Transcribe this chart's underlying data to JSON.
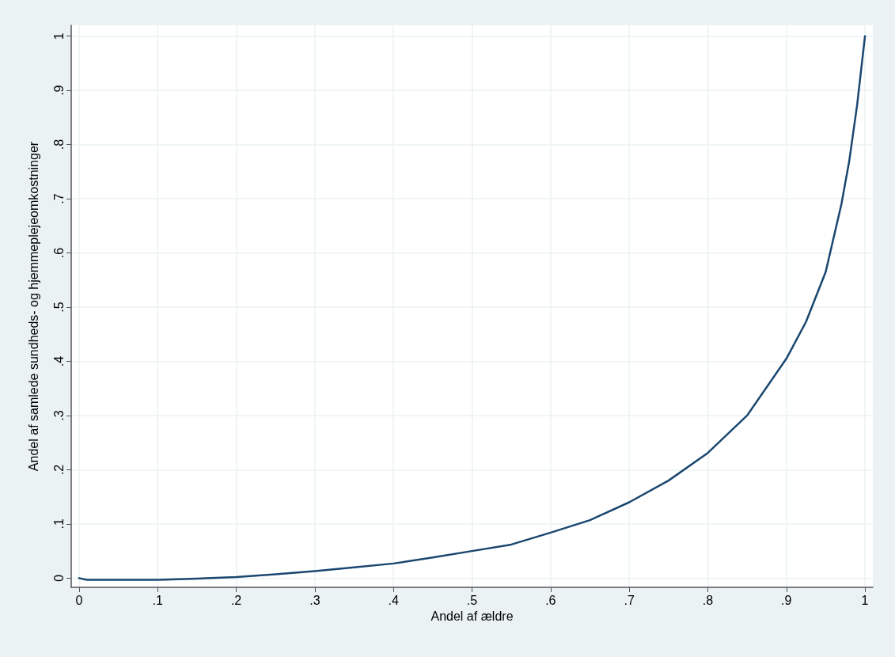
{
  "chart_data": {
    "type": "line",
    "xlabel": "Andel af ældre",
    "ylabel": "Andel af samlede sundheds- og hjemmeplejeomkostninger",
    "series": [
      {
        "color": "#1a476f",
        "x": [
          0,
          0.01,
          0.05,
          0.1,
          0.15,
          0.2,
          0.25,
          0.3,
          0.35,
          0.4,
          0.45,
          0.5,
          0.55,
          0.6,
          0.65,
          0.7,
          0.75,
          0.8,
          0.85,
          0.9,
          0.925,
          0.95,
          0.97,
          0.98,
          0.99,
          1
        ],
        "values": [
          0,
          -0.003,
          -0.003,
          -0.003,
          -0.001,
          0.002,
          0.007,
          0.013,
          0.02,
          0.027,
          0.038,
          0.05,
          0.062,
          0.084,
          0.107,
          0.14,
          0.18,
          0.231,
          0.3,
          0.405,
          0.473,
          0.565,
          0.69,
          0.77,
          0.873,
          1
        ]
      }
    ],
    "xlim": [
      -0.01,
      1.01
    ],
    "xticks": [
      {
        "value": 0,
        "label": "0"
      },
      {
        "value": 0.1,
        "label": ".1"
      },
      {
        "value": 0.2,
        "label": ".2"
      },
      {
        "value": 0.3,
        "label": ".3"
      },
      {
        "value": 0.4,
        "label": ".4"
      },
      {
        "value": 0.5,
        "label": ".5"
      },
      {
        "value": 0.6,
        "label": ".6"
      },
      {
        "value": 0.7,
        "label": ".7"
      },
      {
        "value": 0.8,
        "label": ".8"
      },
      {
        "value": 0.9,
        "label": ".9"
      },
      {
        "value": 1,
        "label": "1"
      }
    ],
    "ylim": [
      -0.017,
      1.02
    ],
    "yticks": [
      {
        "value": 0,
        "label": "0"
      },
      {
        "value": 0.1,
        "label": ".1"
      },
      {
        "value": 0.2,
        "label": ".2"
      },
      {
        "value": 0.3,
        "label": ".3"
      },
      {
        "value": 0.4,
        "label": ".4"
      },
      {
        "value": 0.5,
        "label": ".5"
      },
      {
        "value": 0.6,
        "label": ".6"
      },
      {
        "value": 0.7,
        "label": ".7"
      },
      {
        "value": 0.8,
        "label": ".8"
      },
      {
        "value": 0.9,
        "label": ".9"
      },
      {
        "value": 1,
        "label": "1"
      }
    ],
    "grid": true,
    "marker": "none",
    "line_style": "solid"
  }
}
